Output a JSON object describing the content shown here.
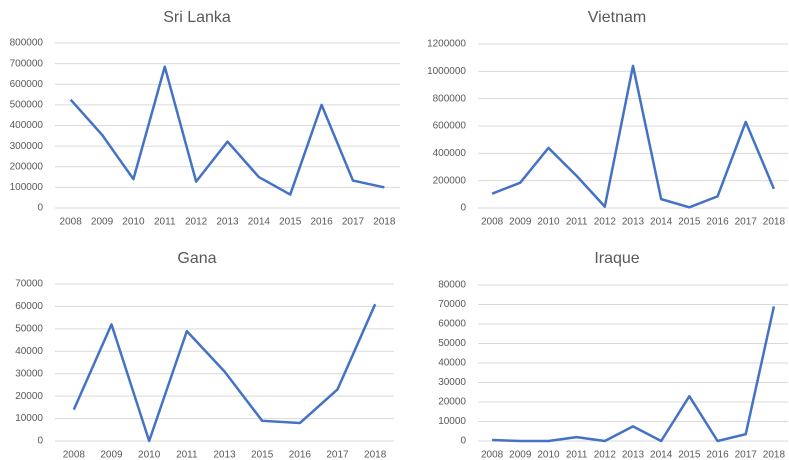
{
  "chart_data": [
    {
      "type": "line",
      "title": "Sri Lanka",
      "color": "#4472c4",
      "grid": true,
      "categories": [
        "2008",
        "2009",
        "2010",
        "2011",
        "2012",
        "2013",
        "2014",
        "2015",
        "2016",
        "2017",
        "2018"
      ],
      "values": [
        525000,
        355000,
        140000,
        685000,
        128000,
        322000,
        150000,
        65000,
        500000,
        133000,
        100000
      ],
      "ylim": [
        0,
        800000
      ],
      "yticks": [
        0,
        100000,
        200000,
        300000,
        400000,
        500000,
        600000,
        700000,
        800000
      ]
    },
    {
      "type": "line",
      "title": "Vietnam",
      "color": "#4472c4",
      "grid": true,
      "categories": [
        "2008",
        "2009",
        "2010",
        "2011",
        "2012",
        "2013",
        "2014",
        "2015",
        "2016",
        "2017",
        "2018"
      ],
      "values": [
        105000,
        185000,
        440000,
        235000,
        10000,
        1040000,
        65000,
        5000,
        85000,
        630000,
        140000
      ],
      "ylim": [
        0,
        1200000
      ],
      "yticks": [
        0,
        200000,
        400000,
        600000,
        800000,
        1000000,
        1200000
      ]
    },
    {
      "type": "line",
      "title": "Gana",
      "color": "#4472c4",
      "grid": true,
      "categories": [
        "2008",
        "2009",
        "2010",
        "2011",
        "2013",
        "2015",
        "2016",
        "2017",
        "2018"
      ],
      "values": [
        14000,
        52000,
        0,
        49000,
        31000,
        9000,
        8000,
        23000,
        61000
      ],
      "ylim": [
        0,
        70000
      ],
      "yticks": [
        0,
        10000,
        20000,
        30000,
        40000,
        50000,
        60000,
        70000
      ]
    },
    {
      "type": "line",
      "title": "Iraque",
      "color": "#4472c4",
      "grid": true,
      "categories": [
        "2008",
        "2009",
        "2010",
        "2011",
        "2012",
        "2013",
        "2014",
        "2015",
        "2016",
        "2017",
        "2018"
      ],
      "values": [
        500,
        0,
        0,
        2000,
        0,
        7500,
        0,
        23000,
        0,
        3500,
        69000
      ],
      "ylim": [
        0,
        80000
      ],
      "yticks": [
        0,
        10000,
        20000,
        30000,
        40000,
        50000,
        60000,
        70000,
        80000
      ]
    }
  ]
}
